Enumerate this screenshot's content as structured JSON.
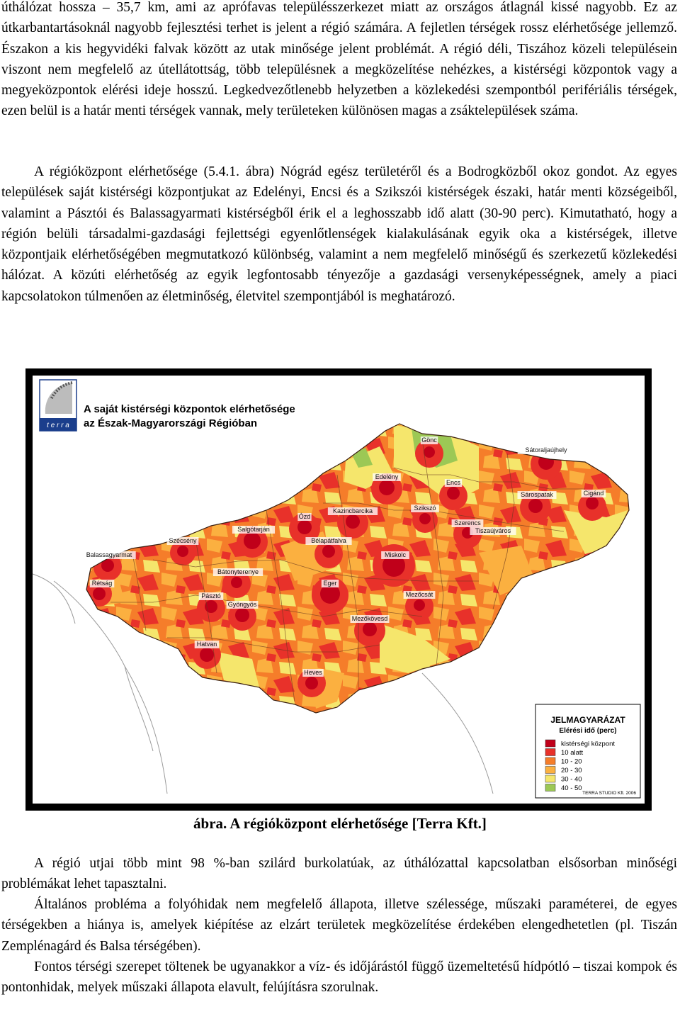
{
  "text_top": {
    "p1": "úthálózat hossza – 35,7 km, ami az aprófavas településszerkezet miatt az országos átlagnál kissé nagyobb. Ez az útkarbantartásoknál nagyobb fejlesztési terhet is jelent a régió számára. A fejletlen térségek rossz elérhetősége jellemző. Északon a kis hegyvidéki falvak között az utak minősége jelent problémát. A régió déli, Tiszához közeli településein viszont nem megfelelő az útellátottság, több településnek a megközelítése nehézkes, a kistérségi központok vagy a megyeközpontok elérési ideje hosszú. Legkedvezőtlenebb helyzetben a közlekedési szempontból perifériális térségek, ezen belül is a határ menti térségek vannak, mely területeken különösen magas a zsáktelepülések száma.",
    "p2": "A régióközpont elérhetősége (5.4.1. ábra) Nógrád egész területéről és a Bodrogközből okoz gondot. Az egyes települések saját kistérségi központjukat az Edelényi, Encsi és a Szikszói kistérségek északi, határ menti községeiből, valamint a Pásztói és Balassagyarmati kistérségből érik el a leghosszabb idő alatt (30-90 perc). Kimutatható, hogy a régión belüli társadalmi-gazdasági fejlettségi egyenlőtlenségek kialakulásának egyik oka a kistérségek, illetve központjaik elérhetőségében megmutatkozó különbség, valamint a nem megfelelő minőségű és szerkezetű közlekedési hálózat. A közúti elérhetőség az egyik legfontosabb tényezője a gazdasági versenyképességnek, amely a piaci kapcsolatokon túlmenően az életminőség, életvitel szempontjából is meghatározó."
  },
  "map": {
    "logo_text": "t e r r a",
    "title_line1": "A saját kistérségi központok elérhetősége",
    "title_line2": "az Észak-Magyarországi Régióban",
    "cities": [
      "Gönc",
      "Sátoraljaújhely",
      "Edelény",
      "Encs",
      "Sárospatak",
      "Cigánd",
      "Kazincbarcika",
      "Szikszó",
      "Szerencs",
      "Ózd",
      "Salgótarján",
      "Bélapátfalva",
      "Miskolc",
      "Szécsény",
      "Balassagyarmat",
      "Bátonyterenye",
      "Tiszaújváros",
      "Rétság",
      "Pásztó",
      "Eger",
      "Mezőcsát",
      "Gyöngyös",
      "Mezőkövesd",
      "Hatvan",
      "Heves"
    ],
    "legend": {
      "title": "JELMAGYARÁZAT",
      "subtitle": "Elérési idő (perc)",
      "items": [
        {
          "label": "kistérségi központ",
          "color": "#c0001a"
        },
        {
          "label": "10 alatt",
          "color": "#e8312a"
        },
        {
          "label": "10 - 20",
          "color": "#f57d2a"
        },
        {
          "label": "20 - 30",
          "color": "#fbb040"
        },
        {
          "label": "30 - 40",
          "color": "#f5e66c"
        },
        {
          "label": "40 - 50",
          "color": "#9cc855"
        }
      ],
      "credit": "TERRA STUDIO Kft. 2006"
    }
  },
  "caption": "ábra. A régióközpont elérhetősége [Terra Kft.]",
  "text_bottom": {
    "p1": "A régió utjai több mint 98 %-ban szilárd burkolatúak, az úthálózattal kapcsolatban elsősorban minőségi problémákat lehet tapasztalni.",
    "p2": "Általános probléma a folyóhidak nem megfelelő állapota, illetve szélessége, műszaki paraméterei, de egyes térségekben a hiánya is, amelyek kiépítése az elzárt területek megközelítése érdekében elengedhetetlen (pl. Tiszán Zemplénagárd és Balsa térségében).",
    "p3": "Fontos térségi szerepet töltenek be ugyanakkor a víz- és időjárástól függő üzemeltetésű hídpótló – tiszai kompok és pontonhidak, melyek műszaki állapota elavult, felújításra szorulnak."
  }
}
